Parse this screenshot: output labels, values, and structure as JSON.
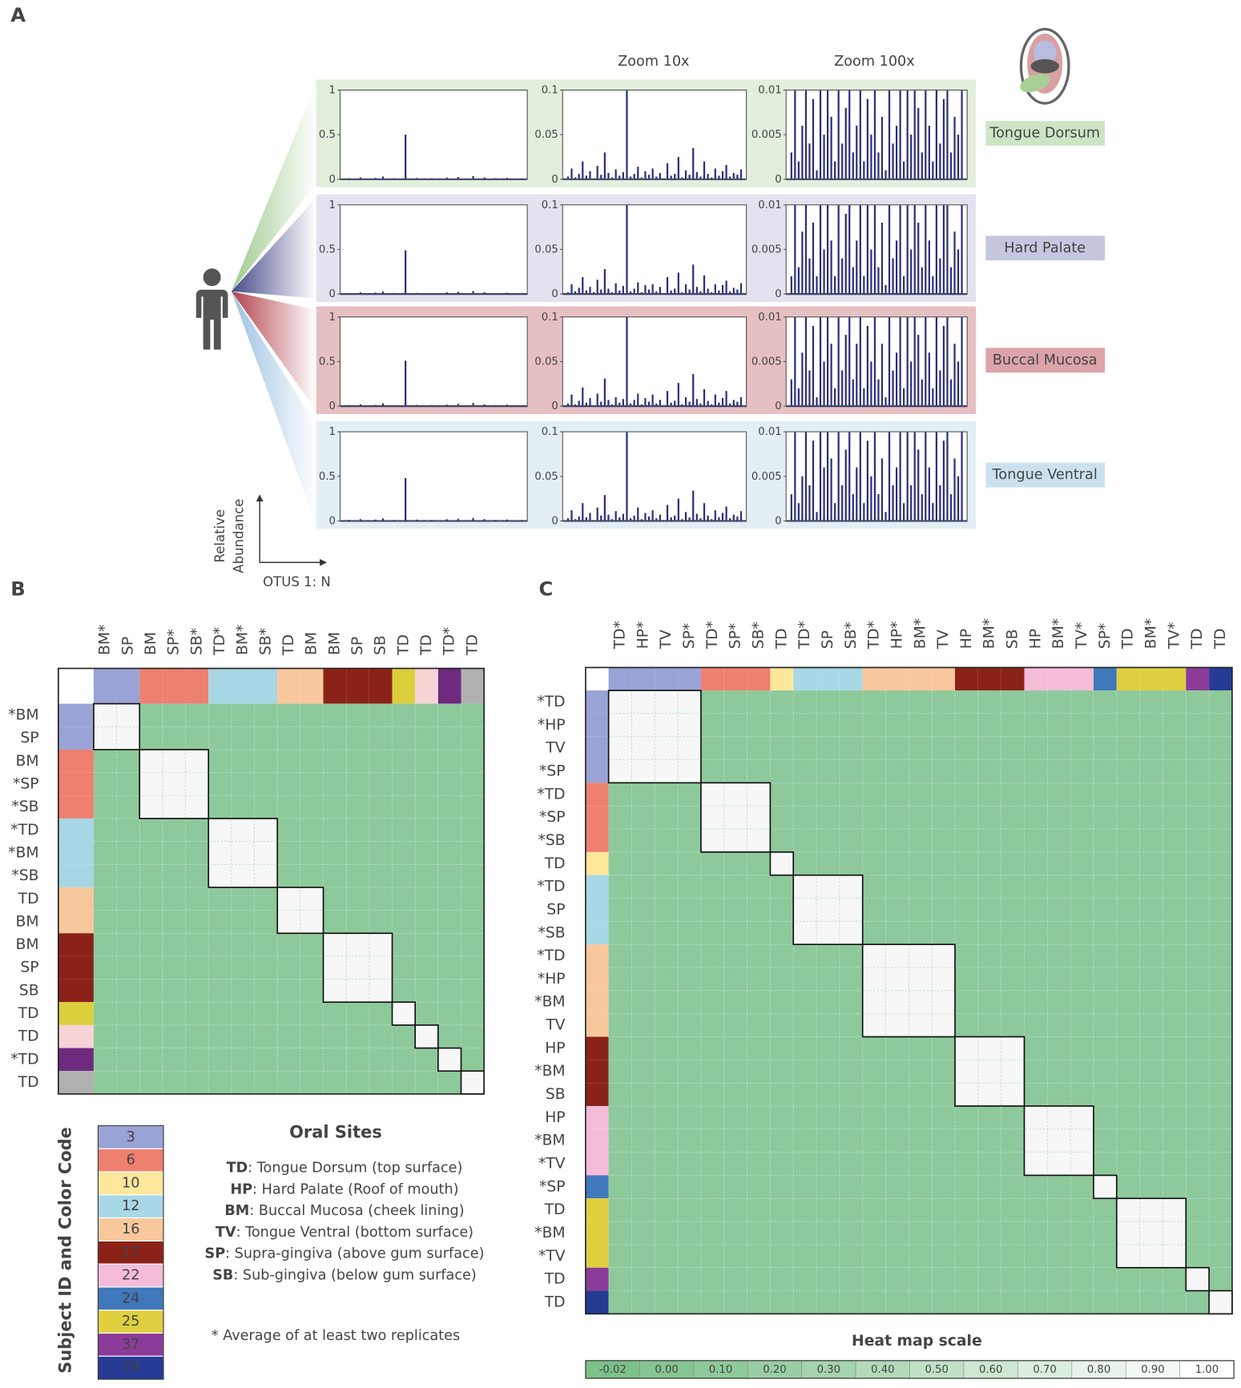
{
  "panels": {
    "a": "A",
    "b": "B",
    "c": "C"
  },
  "panel_a": {
    "zoom_headers": [
      "Zoom 10x",
      "Zoom 100x"
    ],
    "y_label": [
      "Relative",
      "Abundance"
    ],
    "x_label": "OTUS 1: N",
    "bar_color": "#2a2f7a",
    "zooms": [
      {
        "ylim": [
          0,
          1
        ],
        "yticks": [
          0,
          0.5,
          1
        ]
      },
      {
        "ylim": [
          0,
          0.1
        ],
        "yticks": [
          0,
          0.05,
          0.1
        ]
      },
      {
        "ylim": [
          0,
          0.01
        ],
        "yticks": [
          0,
          0.005,
          0.01
        ]
      }
    ],
    "sites": [
      {
        "name": "Tongue Dorsum",
        "background": "#e2efdd",
        "label_color": "#cde5c5",
        "fan_color": "#9fca8e",
        "values": [
          0.003,
          0.012,
          0.002,
          0.006,
          0.02,
          0.004,
          0.009,
          0.001,
          0.015,
          0.005,
          0.03,
          0.007,
          0.002,
          0.011,
          0.004,
          0.008,
          0.5,
          0.003,
          0.006,
          0.014,
          0.002,
          0.009,
          0.005,
          0.012,
          0.003,
          0.007,
          0.001,
          0.018,
          0.004,
          0.006,
          0.025,
          0.002,
          0.01,
          0.005,
          0.035,
          0.008,
          0.003,
          0.02,
          0.006,
          0.002,
          0.012,
          0.004,
          0.009,
          0.016,
          0.003,
          0.007,
          0.005,
          0.011
        ]
      },
      {
        "name": "Hard Palate",
        "background": "#e2e3ee",
        "label_color": "#c5c7df",
        "fan_color": "#474c8a",
        "values": [
          0.002,
          0.011,
          0.003,
          0.007,
          0.019,
          0.004,
          0.008,
          0.002,
          0.016,
          0.005,
          0.028,
          0.006,
          0.002,
          0.012,
          0.004,
          0.009,
          0.49,
          0.003,
          0.006,
          0.013,
          0.002,
          0.01,
          0.005,
          0.011,
          0.003,
          0.008,
          0.001,
          0.019,
          0.004,
          0.006,
          0.024,
          0.002,
          0.011,
          0.005,
          0.033,
          0.008,
          0.003,
          0.021,
          0.006,
          0.002,
          0.011,
          0.004,
          0.01,
          0.015,
          0.003,
          0.007,
          0.005,
          0.012
        ]
      },
      {
        "name": "Buccal Mucosa",
        "background": "#e6bfc2",
        "label_color": "#dca3a8",
        "fan_color": "#b3434d",
        "values": [
          0.003,
          0.013,
          0.002,
          0.006,
          0.021,
          0.004,
          0.009,
          0.001,
          0.014,
          0.005,
          0.031,
          0.007,
          0.002,
          0.01,
          0.004,
          0.008,
          0.51,
          0.003,
          0.007,
          0.014,
          0.002,
          0.009,
          0.005,
          0.013,
          0.003,
          0.007,
          0.001,
          0.017,
          0.004,
          0.006,
          0.026,
          0.002,
          0.01,
          0.005,
          0.036,
          0.008,
          0.003,
          0.019,
          0.006,
          0.002,
          0.013,
          0.004,
          0.009,
          0.017,
          0.003,
          0.007,
          0.005,
          0.01
        ]
      },
      {
        "name": "Tongue Ventral",
        "background": "#e4eef5",
        "label_color": "#cae2ef",
        "fan_color": "#9cc1e2",
        "values": [
          0.003,
          0.012,
          0.002,
          0.005,
          0.02,
          0.004,
          0.009,
          0.001,
          0.015,
          0.006,
          0.029,
          0.007,
          0.002,
          0.011,
          0.004,
          0.008,
          0.48,
          0.003,
          0.006,
          0.015,
          0.002,
          0.009,
          0.005,
          0.012,
          0.003,
          0.007,
          0.001,
          0.018,
          0.004,
          0.006,
          0.025,
          0.002,
          0.01,
          0.004,
          0.034,
          0.008,
          0.003,
          0.02,
          0.006,
          0.002,
          0.012,
          0.004,
          0.009,
          0.016,
          0.003,
          0.007,
          0.005,
          0.011
        ]
      }
    ]
  },
  "heatmap_colors": {
    "cell": "#8dc99b",
    "same_subject": "#f6f7f6",
    "grid": "#b9ddc2",
    "border": "#111111"
  },
  "panel_b": {
    "columns": [
      "BM*",
      "SP",
      "BM",
      "SP*",
      "SB*",
      "TD*",
      "BM*",
      "SB*",
      "TD",
      "BM",
      "BM",
      "SP",
      "SB",
      "TD",
      "TD",
      "TD*",
      "TD"
    ],
    "rows": [
      "*BM",
      "SP",
      "BM",
      "*SP",
      "*SB",
      "*TD",
      "*BM",
      "*SB",
      "TD",
      "BM",
      "BM",
      "SP",
      "SB",
      "TD",
      "TD",
      "*TD",
      "TD"
    ],
    "colors": [
      "#9aa3d6",
      "#9aa3d6",
      "#ee8070",
      "#ee8070",
      "#ee8070",
      "#a8d6e4",
      "#a8d6e4",
      "#a8d6e4",
      "#f8c89c",
      "#f8c89c",
      "#8b2218",
      "#8b2218",
      "#8b2218",
      "#dccf3c",
      "#f6d4d6",
      "#6d2a7e",
      "#b0b0b0"
    ],
    "text_colors": [
      "#8791cf",
      "#8791cf",
      "#e8604f",
      "#e8604f",
      "#e8604f",
      "#3a8fb0",
      "#3a8fb0",
      "#3a8fb0",
      "#f0a060",
      "#f0a060",
      "#8b2218",
      "#8b2218",
      "#8b2218",
      "#e0cf50",
      "#f2b8bc",
      "#6d2a7e",
      "#333333"
    ]
  },
  "panel_c": {
    "columns": [
      "TD*",
      "HP*",
      "TV",
      "SP*",
      "TD*",
      "SP*",
      "SB*",
      "TD",
      "TD*",
      "SP",
      "SB*",
      "TD*",
      "HP*",
      "BM*",
      "TV",
      "HP",
      "BM*",
      "SB",
      "HP",
      "BM*",
      "TV*",
      "SP*",
      "TD",
      "BM*",
      "TV*",
      "TD",
      "TD"
    ],
    "rows": [
      "*TD",
      "*HP",
      "TV",
      "*SP",
      "*TD",
      "*SP",
      "*SB",
      "TD",
      "*TD",
      "SP",
      "*SB",
      "*TD",
      "*HP",
      "*BM",
      "TV",
      "HP",
      "*BM",
      "SB",
      "HP",
      "*BM",
      "*TV",
      "*SP",
      "TD",
      "*BM",
      "*TV",
      "TD",
      "TD"
    ],
    "colors": [
      "#9aa3d6",
      "#9aa3d6",
      "#9aa3d6",
      "#9aa3d6",
      "#ee8070",
      "#ee8070",
      "#ee8070",
      "#fde79b",
      "#a8d8e6",
      "#a8d8e6",
      "#a8d8e6",
      "#f8c89c",
      "#f8c89c",
      "#f8c89c",
      "#f8c89c",
      "#8b2218",
      "#8b2218",
      "#8b2218",
      "#f5bcd8",
      "#f5bcd8",
      "#f5bcd8",
      "#3f78bb",
      "#e0d040",
      "#e0d040",
      "#e0d040",
      "#8b3c98",
      "#253b95"
    ],
    "text_colors": [
      "#7d88cc",
      "#7d88cc",
      "#7d88cc",
      "#7d88cc",
      "#e8604f",
      "#e8604f",
      "#e8604f",
      "#f0c860",
      "#7cc4dc",
      "#7cc4dc",
      "#7cc4dc",
      "#f0a060",
      "#f0a060",
      "#f0a060",
      "#f0a060",
      "#8b2218",
      "#8b2218",
      "#8b2218",
      "#e88ab8",
      "#e88ab8",
      "#e88ab8",
      "#3f78bb",
      "#b8a820",
      "#b8a820",
      "#b8a820",
      "#8b3c98",
      "#253b95"
    ]
  },
  "legend": {
    "title": "Subject ID and Color Code",
    "subjects": [
      {
        "id": 3,
        "color": "#9aa3d6"
      },
      {
        "id": 6,
        "color": "#ee8070"
      },
      {
        "id": 10,
        "color": "#fde79b"
      },
      {
        "id": 12,
        "color": "#a8d8e6"
      },
      {
        "id": 16,
        "color": "#f8c89c"
      },
      {
        "id": 17,
        "color": "#8b2218"
      },
      {
        "id": 22,
        "color": "#f5bcd8"
      },
      {
        "id": 24,
        "color": "#3f78bb"
      },
      {
        "id": 25,
        "color": "#e0d040"
      },
      {
        "id": 37,
        "color": "#8b3c98"
      },
      {
        "id": 39,
        "color": "#253b95"
      }
    ]
  },
  "oral_sites": {
    "title": "Oral Sites",
    "items": [
      {
        "abbr": "TD",
        "desc": ": Tongue Dorsum (top surface)"
      },
      {
        "abbr": "HP",
        "desc": ": Hard Palate (Roof of mouth)"
      },
      {
        "abbr": "BM",
        "desc": ": Buccal Mucosa (cheek lining)"
      },
      {
        "abbr": "TV",
        "desc": ":  Tongue Ventral (bottom surface)"
      },
      {
        "abbr": "SP",
        "desc": ": Supra-gingiva (above gum surface)"
      },
      {
        "abbr": "SB",
        "desc": ": Sub-gingiva (below gum surface)"
      }
    ],
    "note": "* Average of at least two replicates"
  },
  "scale": {
    "title": "Heat map scale",
    "ticks": [
      {
        "value": -0.02,
        "label": "-0.02"
      },
      {
        "value": 0,
        "label": "0.00"
      },
      {
        "value": 0.1,
        "label": "0.10"
      },
      {
        "value": 0.2,
        "label": "0.20"
      },
      {
        "value": 0.3,
        "label": "0.30"
      },
      {
        "value": 0.4,
        "label": "0.40"
      },
      {
        "value": 0.5,
        "label": "0.50"
      },
      {
        "value": 0.6,
        "label": "0.60"
      },
      {
        "value": 0.7,
        "label": "0.70"
      },
      {
        "value": 0.8,
        "label": "0.80"
      },
      {
        "value": 0.9,
        "label": "0.90"
      },
      {
        "value": 1,
        "label": "1.00"
      }
    ],
    "colors": [
      "#7cc18a",
      "#86c593",
      "#8fc99a",
      "#99cea3",
      "#a5d4ae",
      "#b2dab9",
      "#c0e1c6",
      "#cde7d2",
      "#dbeedf",
      "#e8f4ea",
      "#f3f9f4",
      "#ffffff"
    ]
  }
}
